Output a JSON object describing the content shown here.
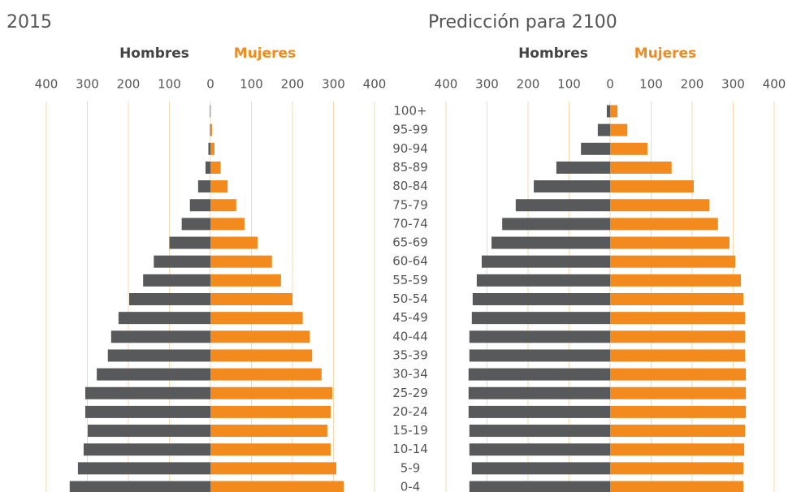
{
  "chart_data": [
    {
      "type": "pyramid",
      "title": "2015",
      "categories": [
        "100+",
        "95-99",
        "90-94",
        "85-89",
        "80-84",
        "75-79",
        "70-74",
        "65-69",
        "60-64",
        "55-59",
        "50-54",
        "45-49",
        "40-44",
        "35-39",
        "30-34",
        "25-29",
        "20-24",
        "15-19",
        "10-14",
        "5-9",
        "0-4"
      ],
      "series": [
        {
          "name": "Hombres",
          "color": "#58595b",
          "side": "left",
          "values": [
            1,
            1,
            5,
            12,
            30,
            50,
            70,
            100,
            138,
            164,
            198,
            224,
            242,
            250,
            277,
            305,
            305,
            299,
            309,
            323,
            343
          ]
        },
        {
          "name": "Mujeres",
          "color": "#f28a1d",
          "side": "right",
          "values": [
            1,
            4,
            10,
            25,
            42,
            63,
            83,
            115,
            150,
            172,
            200,
            225,
            242,
            248,
            271,
            297,
            293,
            285,
            293,
            307,
            325
          ]
        }
      ],
      "xlim": [
        -400,
        400
      ],
      "xticks": [
        {
          "value": -400,
          "label": "400"
        },
        {
          "value": -300,
          "label": "300"
        },
        {
          "value": -200,
          "label": "200"
        },
        {
          "value": -100,
          "label": "100"
        },
        0,
        100,
        200,
        300,
        400
      ],
      "grid": true
    },
    {
      "type": "pyramid",
      "title": "Predicción para 2100",
      "series": [
        {
          "name": "Hombres",
          "color": "#58595b",
          "side": "left",
          "values": [
            8,
            30,
            71,
            131,
            186,
            230,
            263,
            289,
            313,
            325,
            335,
            337,
            343,
            343,
            345,
            345,
            345,
            343,
            343,
            337,
            343
          ]
        },
        {
          "name": "Mujeres",
          "color": "#f28a1d",
          "side": "right",
          "values": [
            18,
            42,
            91,
            150,
            204,
            242,
            263,
            291,
            305,
            319,
            325,
            329,
            329,
            329,
            331,
            331,
            331,
            329,
            327,
            325,
            325
          ]
        }
      ],
      "xlim": [
        -400,
        400
      ],
      "xticks": [
        {
          "value": -400,
          "label": "400"
        },
        {
          "value": -300,
          "label": "300"
        },
        {
          "value": -200,
          "label": "200"
        },
        {
          "value": -100,
          "label": "100"
        },
        0,
        100,
        200,
        300,
        400
      ],
      "grid": true
    }
  ]
}
